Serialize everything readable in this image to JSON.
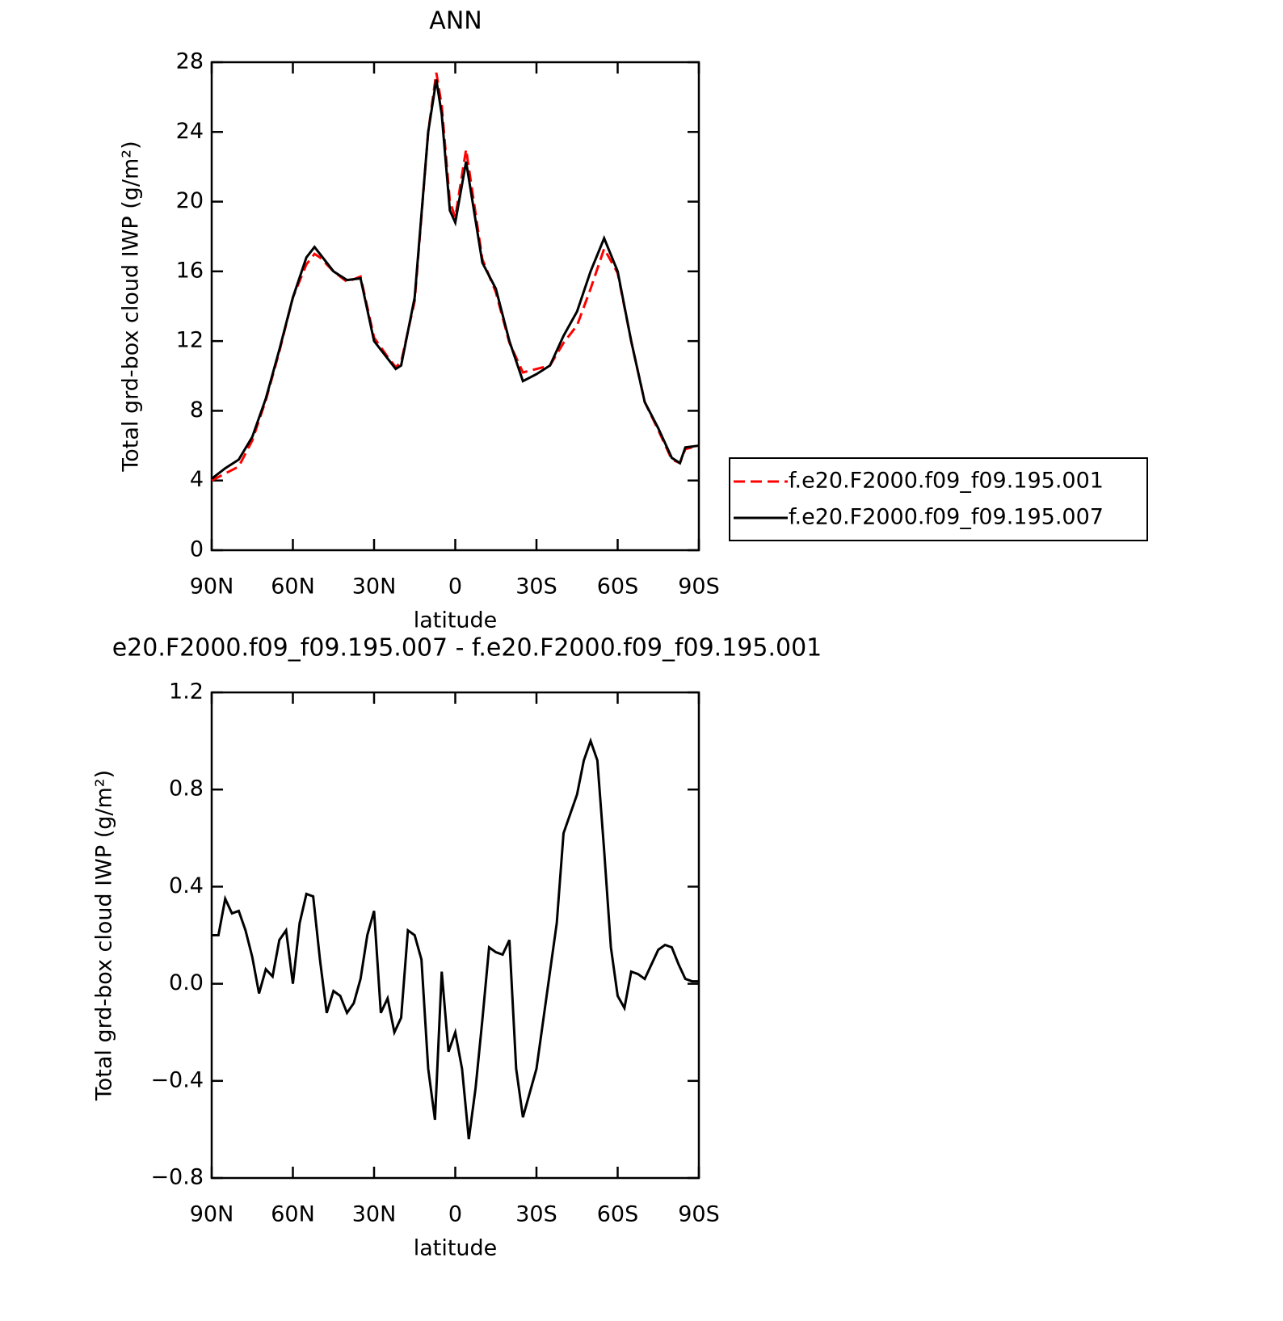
{
  "chart_data": [
    {
      "type": "line",
      "title": "ANN",
      "xlabel": "latitude",
      "ylabel": "Total grd-box cloud IWP (g/m²)",
      "x": [
        90,
        85,
        80,
        75,
        70,
        65,
        60,
        55,
        52,
        50,
        45,
        40,
        35,
        30,
        25,
        22,
        20,
        15,
        10,
        7,
        5,
        2,
        0,
        -4,
        -10,
        -15,
        -20,
        -25,
        -30,
        -35,
        -40,
        -45,
        -50,
        -55,
        -60,
        -65,
        -70,
        -75,
        -80,
        -83,
        -85,
        -90
      ],
      "series": [
        {
          "name": "f.e20.F2000.f09_f09.195.001",
          "color": "#ff0000",
          "dash": "dashed",
          "values": [
            4.0,
            4.4,
            4.8,
            6.3,
            8.6,
            11.4,
            14.5,
            16.4,
            17.0,
            16.8,
            16.0,
            15.4,
            15.7,
            12.2,
            11.1,
            10.5,
            10.8,
            14.3,
            24.0,
            27.4,
            25.5,
            20.0,
            19.1,
            23.0,
            16.7,
            14.8,
            11.9,
            10.2,
            10.4,
            10.6,
            11.9,
            12.9,
            15.0,
            17.3,
            15.9,
            12.0,
            8.5,
            6.9,
            5.2,
            5.0,
            5.8,
            6.0
          ]
        },
        {
          "name": "f.e20.F2000.f09_f09.195.007",
          "color": "#000000",
          "dash": "solid",
          "values": [
            4.1,
            4.7,
            5.2,
            6.5,
            8.7,
            11.5,
            14.5,
            16.8,
            17.4,
            17.0,
            16.0,
            15.5,
            15.6,
            12.0,
            11.0,
            10.4,
            10.6,
            14.5,
            24.0,
            27.0,
            25.0,
            19.5,
            18.8,
            22.3,
            16.5,
            15.0,
            12.0,
            9.7,
            10.1,
            10.6,
            12.3,
            13.7,
            16.0,
            17.9,
            16.0,
            12.0,
            8.5,
            7.0,
            5.3,
            5.0,
            5.9,
            6.0
          ]
        }
      ],
      "xlim": [
        90,
        -90
      ],
      "xticks": [
        {
          "value": 90,
          "label": "90N"
        },
        {
          "value": 60,
          "label": "60N"
        },
        {
          "value": 30,
          "label": "30N"
        },
        0,
        {
          "value": -30,
          "label": "30S"
        },
        {
          "value": -60,
          "label": "60S"
        },
        {
          "value": -90,
          "label": "90S"
        }
      ],
      "ylim": [
        0,
        28
      ],
      "yticks": [
        0,
        4,
        8,
        12,
        16,
        20,
        24,
        28
      ],
      "grid": false,
      "legend_position": "right"
    },
    {
      "type": "line",
      "title": "e20.F2000.f09_f09.195.007 - f.e20.F2000.f09_f09.195.001",
      "xlabel": "latitude",
      "ylabel": "Total grd-box cloud IWP (g/m²)",
      "x": [
        90,
        87.5,
        85,
        82.5,
        80,
        77.5,
        75,
        72.5,
        70,
        67.5,
        65,
        62.5,
        60,
        57.5,
        55,
        52.5,
        50,
        47.5,
        45,
        42.5,
        40,
        37.5,
        35,
        32.5,
        30,
        27.5,
        25,
        22.5,
        20,
        17.5,
        15,
        12.5,
        10,
        7.5,
        5,
        2.5,
        0,
        -2.5,
        -5,
        -7.5,
        -10,
        -12.5,
        -15,
        -17.5,
        -20,
        -22.5,
        -25,
        -27.5,
        -30,
        -32.5,
        -35,
        -37.5,
        -40,
        -42.5,
        -45,
        -47.5,
        -50,
        -52.5,
        -55,
        -57.5,
        -60,
        -62.5,
        -65,
        -67.5,
        -70,
        -72.5,
        -75,
        -77.5,
        -80,
        -82.5,
        -85,
        -87.5,
        -90
      ],
      "series": [
        {
          "color": "#000000",
          "dash": "solid",
          "values": [
            0.2,
            0.2,
            0.35,
            0.29,
            0.3,
            0.22,
            0.11,
            -0.04,
            0.06,
            0.03,
            0.18,
            0.22,
            0.0,
            0.25,
            0.37,
            0.36,
            0.1,
            -0.12,
            -0.03,
            -0.05,
            -0.12,
            -0.08,
            0.02,
            0.2,
            0.3,
            -0.12,
            -0.06,
            -0.2,
            -0.14,
            0.22,
            0.2,
            0.1,
            -0.35,
            -0.56,
            0.05,
            -0.28,
            -0.2,
            -0.35,
            -0.64,
            -0.43,
            -0.15,
            0.15,
            0.13,
            0.12,
            0.18,
            -0.35,
            -0.55,
            -0.45,
            -0.35,
            -0.15,
            0.05,
            0.25,
            0.62,
            0.7,
            0.78,
            0.92,
            1.0,
            0.92,
            0.55,
            0.15,
            -0.05,
            -0.1,
            0.05,
            0.04,
            0.02,
            0.08,
            0.14,
            0.16,
            0.15,
            0.08,
            0.02,
            0.01,
            0.01
          ]
        }
      ],
      "xlim": [
        90,
        -90
      ],
      "xticks": [
        {
          "value": 90,
          "label": "90N"
        },
        {
          "value": 60,
          "label": "60N"
        },
        {
          "value": 30,
          "label": "30N"
        },
        0,
        {
          "value": -30,
          "label": "30S"
        },
        {
          "value": -60,
          "label": "60S"
        },
        {
          "value": -90,
          "label": "90S"
        }
      ],
      "ylim": [
        -0.8,
        1.2
      ],
      "yticks": [
        {
          "value": -0.8,
          "label": "−0.8"
        },
        {
          "value": -0.4,
          "label": "−0.4"
        },
        {
          "value": 0,
          "label": "0.0"
        },
        0.4,
        0.8,
        1.2
      ],
      "grid": false
    }
  ]
}
